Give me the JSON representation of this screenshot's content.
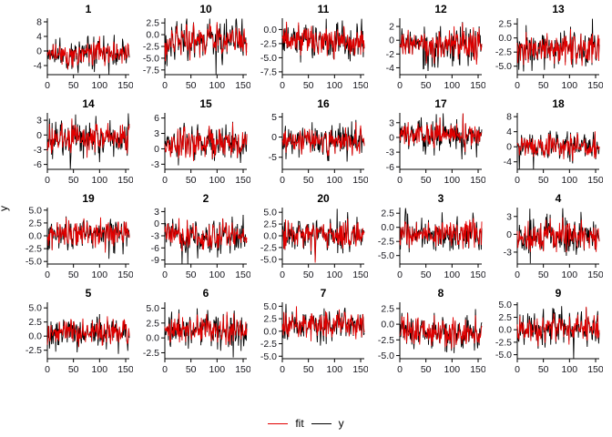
{
  "figure": {
    "ylabel": "y",
    "legend": [
      {
        "label": "fit",
        "color": "#e10000"
      },
      {
        "label": "y",
        "color": "#000000"
      }
    ],
    "colors": {
      "fit": "#e10000",
      "y": "#000000",
      "axis": "#000000",
      "tick_label": "#16161d",
      "title": "#000000",
      "background": "#ffffff"
    }
  },
  "chart_data": {
    "type": "line",
    "layout": "grid-4rows-5cols",
    "series_names": [
      "y",
      "fit"
    ],
    "legend_position": "bottom-center",
    "grid": false,
    "x": {
      "lim": [
        0,
        157
      ],
      "tick_values": [
        0,
        50,
        100,
        150
      ],
      "tick_labels": [
        "0",
        "50",
        "100",
        "150"
      ],
      "n_points": 158
    },
    "panels": [
      {
        "title": "1",
        "ytick_values": [
          8,
          4,
          0,
          -4
        ],
        "ytick_labels": [
          "8",
          "4",
          "0",
          "-4"
        ],
        "ylim": [
          -6.5,
          9
        ],
        "mean": -0.5,
        "sd": 1.9,
        "seed": 11
      },
      {
        "title": "10",
        "ytick_values": [
          2.5,
          0,
          -2.5,
          -5,
          -7.5
        ],
        "ytick_labels": [
          "2.5",
          "0.0",
          "-2.5",
          "-5.0",
          "-7.5"
        ],
        "ylim": [
          -8.5,
          3.5
        ],
        "mean": -1.2,
        "sd": 1.9,
        "seed": 22
      },
      {
        "title": "11",
        "ytick_values": [
          0,
          -2.5,
          -5,
          -7.5
        ],
        "ytick_labels": [
          "0.0",
          "-2.5",
          "-5.0",
          "-7.5"
        ],
        "ylim": [
          -8,
          2
        ],
        "mean": -2.0,
        "sd": 1.6,
        "seed": 33
      },
      {
        "title": "12",
        "ytick_values": [
          2,
          0,
          -2,
          -4
        ],
        "ytick_labels": [
          "2",
          "0",
          "-2",
          "-4"
        ],
        "ylim": [
          -5,
          3.2
        ],
        "mean": -0.6,
        "sd": 1.4,
        "seed": 44
      },
      {
        "title": "13",
        "ytick_values": [
          2.5,
          0,
          -2.5,
          -5
        ],
        "ytick_labels": [
          "2.5",
          "0.0",
          "-2.5",
          "-5.0"
        ],
        "ylim": [
          -6.5,
          3.5
        ],
        "mean": -1.8,
        "sd": 1.5,
        "seed": 55
      },
      {
        "title": "14",
        "ytick_values": [
          3,
          0,
          -3,
          -6
        ],
        "ytick_labels": [
          "3",
          "0",
          "-3",
          "-6"
        ],
        "ylim": [
          -7,
          4.5
        ],
        "mean": -0.5,
        "sd": 1.8,
        "seed": 66
      },
      {
        "title": "15",
        "ytick_values": [
          6,
          3,
          0,
          -3
        ],
        "ytick_labels": [
          "6",
          "3",
          "0",
          "-3"
        ],
        "ylim": [
          -4,
          7
        ],
        "mean": 1.0,
        "sd": 1.7,
        "seed": 77
      },
      {
        "title": "16",
        "ytick_values": [
          5,
          0,
          -5
        ],
        "ytick_labels": [
          "5",
          "0",
          "-5"
        ],
        "ylim": [
          -8,
          6
        ],
        "mean": -0.8,
        "sd": 1.9,
        "seed": 88
      },
      {
        "title": "17",
        "ytick_values": [
          3,
          0,
          -3,
          -6
        ],
        "ytick_labels": [
          "3",
          "0",
          "-3",
          "-6"
        ],
        "ylim": [
          -6.5,
          5
        ],
        "mean": 0.6,
        "sd": 1.6,
        "seed": 99
      },
      {
        "title": "18",
        "ytick_values": [
          8,
          4,
          0,
          -4
        ],
        "ytick_labels": [
          "8",
          "4",
          "0",
          "-4"
        ],
        "ylim": [
          -6,
          9
        ],
        "mean": 0.0,
        "sd": 1.7,
        "seed": 110
      },
      {
        "title": "19",
        "ytick_values": [
          5,
          2.5,
          0,
          -2.5,
          -5
        ],
        "ytick_labels": [
          "5.0",
          "2.5",
          "0.0",
          "-2.5",
          "-5.0"
        ],
        "ylim": [
          -5.5,
          5.5
        ],
        "mean": 0.4,
        "sd": 1.6,
        "seed": 121
      },
      {
        "title": "2",
        "ytick_values": [
          3,
          0,
          -3,
          -6,
          -9
        ],
        "ytick_labels": [
          "3",
          "0",
          "-3",
          "-6",
          "-9"
        ],
        "ylim": [
          -10,
          4
        ],
        "mean": -2.8,
        "sd": 1.9,
        "seed": 132
      },
      {
        "title": "20",
        "ytick_values": [
          5,
          2.5,
          0,
          -2.5,
          -5
        ],
        "ytick_labels": [
          "5.0",
          "2.5",
          "0.0",
          "-2.5",
          "-5.0"
        ],
        "ylim": [
          -6,
          6
        ],
        "mean": 0.3,
        "sd": 1.8,
        "seed": 143
      },
      {
        "title": "3",
        "ytick_values": [
          2.5,
          0,
          -2.5,
          -5
        ],
        "ytick_labels": [
          "2.5",
          "0.0",
          "-2.5",
          "-5.0"
        ],
        "ylim": [
          -6.5,
          3.5
        ],
        "mean": -1.0,
        "sd": 1.5,
        "seed": 154
      },
      {
        "title": "4",
        "ytick_values": [
          3,
          0,
          -3
        ],
        "ytick_labels": [
          "3",
          "0",
          "-3"
        ],
        "ylim": [
          -5,
          4.5
        ],
        "mean": -0.2,
        "sd": 1.5,
        "seed": 165
      },
      {
        "title": "5",
        "ytick_values": [
          5,
          2.5,
          0,
          -2.5
        ],
        "ytick_labels": [
          "5.0",
          "2.5",
          "0.0",
          "-2.5"
        ],
        "ylim": [
          -4,
          6
        ],
        "mean": 0.6,
        "sd": 1.5,
        "seed": 176
      },
      {
        "title": "6",
        "ytick_values": [
          5,
          2.5,
          0,
          -2.5
        ],
        "ytick_labels": [
          "5.0",
          "2.5",
          "0.0",
          "-2.5"
        ],
        "ylim": [
          -3.5,
          6
        ],
        "mean": 1.3,
        "sd": 1.4,
        "seed": 187
      },
      {
        "title": "7",
        "ytick_values": [
          5,
          2.5,
          0,
          -2.5,
          -5
        ],
        "ytick_labels": [
          "5.0",
          "2.5",
          "0.0",
          "-2.5",
          "-5.0"
        ],
        "ylim": [
          -5.5,
          5.8
        ],
        "mean": 1.3,
        "sd": 1.5,
        "seed": 198
      },
      {
        "title": "8",
        "ytick_values": [
          2.5,
          0,
          -2.5,
          -5
        ],
        "ytick_labels": [
          "2.5",
          "0.0",
          "-2.5",
          "-5.0"
        ],
        "ylim": [
          -5.5,
          3.5
        ],
        "mean": -1.4,
        "sd": 1.4,
        "seed": 209
      },
      {
        "title": "9",
        "ytick_values": [
          5,
          2.5,
          0,
          -2.5,
          -5
        ],
        "ytick_labels": [
          "5.0",
          "2.5",
          "0.0",
          "-2.5",
          "-5.0"
        ],
        "ylim": [
          -5.8,
          5.5
        ],
        "mean": 0.4,
        "sd": 1.6,
        "seed": 220
      }
    ]
  }
}
